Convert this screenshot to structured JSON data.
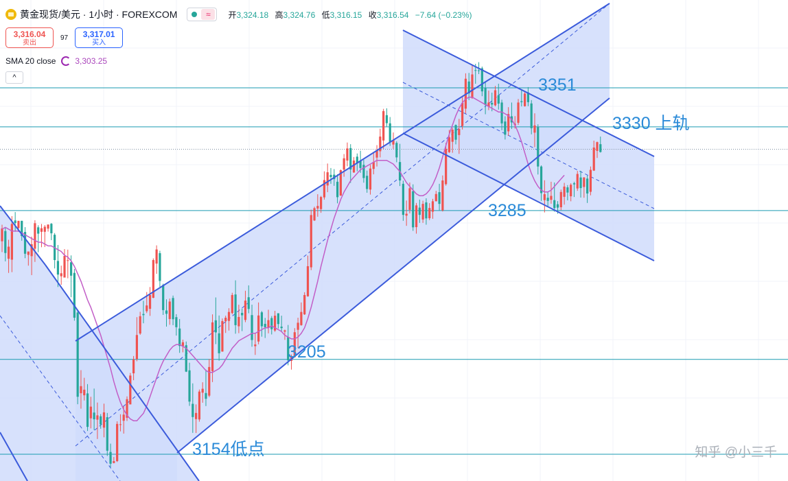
{
  "header": {
    "symbol": "黄金现货/美元 · 1小时 · FOREXCOM",
    "open_label": "开",
    "open": "3,324.18",
    "high_label": "高",
    "high": "3,324.76",
    "low_label": "低",
    "low": "3,316.15",
    "close_label": "收",
    "close": "3,316.54",
    "change": "−7.64 (−0.23%)",
    "sell_price": "3,316.04",
    "sell_label": "卖出",
    "spread": "97",
    "buy_price": "3,317.01",
    "buy_label": "买入",
    "sma_label": "SMA 20 close",
    "sma_value": "3,303.25",
    "live_icon": "dot-icon",
    "wave_icon": "≈",
    "collapse_icon": "^"
  },
  "annotations": {
    "a3351": "3351",
    "a3330": "3330 上轨",
    "a3285": "3285",
    "a3205": "3205",
    "a3154": "3154低点"
  },
  "watermark": "知乎 @小三千",
  "colors": {
    "up": "#ef5350",
    "down": "#26a69a",
    "sma": "#c25ec7",
    "channel": "#3b5bdb",
    "channel_fill": "#d0dcfb",
    "level": "#1a9ab0",
    "annotation": "#2a8ad8"
  },
  "chart_data": {
    "type": "candlestick",
    "price_range": [
      3147,
      3370
    ],
    "levels": [
      3351,
      3330,
      3318,
      3285,
      3205,
      3154
    ],
    "candles_ohlc": [
      [
        3268.5,
        3277.4,
        3262.7,
        3275.4
      ],
      [
        3274.0,
        3276.1,
        3257.7,
        3262.2
      ],
      [
        3259.1,
        3269.3,
        3251.5,
        3265.6
      ],
      [
        3258.6,
        3282.0,
        3251.9,
        3277.8
      ],
      [
        3279.7,
        3284.2,
        3273.6,
        3278.3
      ],
      [
        3275.6,
        3279.5,
        3273.6,
        3279.5
      ],
      [
        3279.5,
        3279.5,
        3268.8,
        3271.3
      ],
      [
        3273.5,
        3276.1,
        3259.4,
        3261.8
      ],
      [
        3261.2,
        3263.0,
        3255.4,
        3263.0
      ],
      [
        3260.5,
        3271.0,
        3250.3,
        3266.9
      ],
      [
        3264.5,
        3279.8,
        3257.4,
        3278.2
      ],
      [
        3276.0,
        3277.1,
        3262.6,
        3272.6
      ],
      [
        3273.6,
        3277.8,
        3265.3,
        3275.5
      ],
      [
        3273.6,
        3277.2,
        3265.4,
        3276.3
      ],
      [
        3275.3,
        3277.5,
        3273.7,
        3277.5
      ],
      [
        3277.9,
        3278.3,
        3269.1,
        3272.8
      ],
      [
        3272.0,
        3272.9,
        3253.9,
        3258.4
      ],
      [
        3257.9,
        3266.5,
        3243.9,
        3250.6
      ],
      [
        3249.7,
        3255.4,
        3245.1,
        3251.3
      ],
      [
        3249.0,
        3264.3,
        3249.0,
        3260.6
      ],
      [
        3258.3,
        3264.0,
        3248.6,
        3258.3
      ],
      [
        3257.2,
        3260.9,
        3238.4,
        3250.0
      ],
      [
        3251.5,
        3253.6,
        3225.8,
        3227.4
      ],
      [
        3230.2,
        3231.3,
        3180.9,
        3184.9
      ],
      [
        3186.8,
        3199.2,
        3178.5,
        3190.6
      ],
      [
        3185.7,
        3195.1,
        3182.9,
        3188.7
      ],
      [
        3186.7,
        3191.7,
        3166.5,
        3168.7
      ],
      [
        3173.3,
        3184.9,
        3167.9,
        3179.6
      ],
      [
        3176.4,
        3189.3,
        3167.0,
        3172.8
      ],
      [
        3172.6,
        3181.8,
        3162.2,
        3174.9
      ],
      [
        3174.4,
        3175.6,
        3167.7,
        3170.0
      ],
      [
        3168.3,
        3181.2,
        3163.1,
        3176.5
      ],
      [
        3173.9,
        3176.2,
        3153.1,
        3155.9
      ],
      [
        3155.2,
        3159.7,
        3147.0,
        3148.9
      ],
      [
        3149.3,
        3152.5,
        3149.1,
        3150.3
      ],
      [
        3150.3,
        3171.7,
        3149.8,
        3170.3
      ],
      [
        3170.0,
        3175.5,
        3166.3,
        3170.1
      ],
      [
        3172.0,
        3179.9,
        3165.1,
        3175.3
      ],
      [
        3173.6,
        3185.1,
        3171.9,
        3183.6
      ],
      [
        3180.8,
        3197.7,
        3180.8,
        3196.3
      ],
      [
        3197.5,
        3206.8,
        3193.8,
        3205.0
      ],
      [
        3205.2,
        3227.7,
        3204.0,
        3218.1
      ],
      [
        3218.9,
        3230.6,
        3218.2,
        3228.2
      ],
      [
        3229.4,
        3236.5,
        3224.4,
        3228.8
      ],
      [
        3230.9,
        3241.2,
        3229.9,
        3234.0
      ],
      [
        3232.2,
        3243.9,
        3228.4,
        3239.6
      ],
      [
        3238.1,
        3259.3,
        3237.9,
        3258.4
      ],
      [
        3256.5,
        3266.3,
        3251.0,
        3264.1
      ],
      [
        3262.1,
        3263.4,
        3244.0,
        3247.2
      ],
      [
        3245.0,
        3245.7,
        3228.9,
        3231.5
      ],
      [
        3231.3,
        3237.3,
        3222.6,
        3229.5
      ],
      [
        3226.7,
        3237.7,
        3223.6,
        3236.1
      ],
      [
        3238.0,
        3239.3,
        3223.4,
        3226.6
      ],
      [
        3227.7,
        3229.3,
        3217.8,
        3222.3
      ],
      [
        3221.6,
        3226.7,
        3208.5,
        3212.2
      ],
      [
        3212.2,
        3215.6,
        3208.8,
        3214.2
      ],
      [
        3212.6,
        3214.6,
        3198.2,
        3198.4
      ],
      [
        3199.1,
        3203.2,
        3180.0,
        3182.3
      ],
      [
        3181.1,
        3192.1,
        3165.5,
        3174.0
      ],
      [
        3172.9,
        3180.8,
        3165.4,
        3176.2
      ],
      [
        3172.7,
        3188.8,
        3171.5,
        3187.7
      ],
      [
        3187.1,
        3192.7,
        3181.7,
        3189.2
      ],
      [
        3186.9,
        3199.5,
        3179.9,
        3183.8
      ],
      [
        3185.5,
        3205.2,
        3184.7,
        3200.9
      ],
      [
        3198.7,
        3229.2,
        3192.8,
        3224.9
      ],
      [
        3226.0,
        3238.3,
        3213.2,
        3219.5
      ],
      [
        3219.0,
        3228.6,
        3204.3,
        3208.3
      ],
      [
        3209.2,
        3227.0,
        3209.1,
        3225.6
      ],
      [
        3225.5,
        3228.5,
        3219.2,
        3227.4
      ],
      [
        3225.7,
        3232.5,
        3220.5,
        3230.5
      ],
      [
        3229.9,
        3240.8,
        3229.2,
        3239.6
      ],
      [
        3239.9,
        3247.5,
        3218.8,
        3223.4
      ],
      [
        3222.8,
        3234.4,
        3219.1,
        3227.8
      ],
      [
        3230.0,
        3232.3,
        3220.2,
        3228.7
      ],
      [
        3226.2,
        3241.9,
        3225.0,
        3236.6
      ],
      [
        3238.4,
        3244.8,
        3229.8,
        3232.1
      ],
      [
        3228.8,
        3234.4,
        3211.8,
        3215.4
      ],
      [
        3212.1,
        3219.3,
        3207.4,
        3213.0
      ],
      [
        3214.6,
        3235.6,
        3213.1,
        3228.6
      ],
      [
        3230.3,
        3231.0,
        3217.2,
        3222.8
      ],
      [
        3224.1,
        3227.3,
        3216.5,
        3222.3
      ],
      [
        3222.0,
        3231.7,
        3219.0,
        3226.1
      ],
      [
        3227.2,
        3228.3,
        3218.4,
        3221.2
      ],
      [
        3220.5,
        3231.1,
        3219.8,
        3228.5
      ],
      [
        3229.8,
        3229.8,
        3221.6,
        3224.0
      ],
      [
        3222.6,
        3228.5,
        3219.6,
        3221.8
      ],
      [
        3219.9,
        3221.0,
        3215.5,
        3220.6
      ],
      [
        3216.9,
        3223.5,
        3201.8,
        3204.5
      ],
      [
        3204.2,
        3207.6,
        3199.5,
        3206.7
      ],
      [
        3206.2,
        3221.8,
        3206.0,
        3219.6
      ],
      [
        3220.9,
        3227.4,
        3211.1,
        3224.7
      ],
      [
        3223.4,
        3235.6,
        3223.1,
        3230.5
      ],
      [
        3229.2,
        3241.1,
        3228.9,
        3239.6
      ],
      [
        3238.9,
        3260.8,
        3238.7,
        3255.1
      ],
      [
        3254.5,
        3285.5,
        3253.0,
        3282.6
      ],
      [
        3279.7,
        3287.1,
        3279.4,
        3286.3
      ],
      [
        3286.1,
        3293.8,
        3281.7,
        3287.5
      ],
      [
        3285.8,
        3292.9,
        3283.8,
        3292.3
      ],
      [
        3292.1,
        3306.1,
        3290.9,
        3301.4
      ],
      [
        3298.5,
        3310.3,
        3294.9,
        3305.6
      ],
      [
        3304.2,
        3307.9,
        3299.4,
        3303.0
      ],
      [
        3304.3,
        3307.3,
        3298.3,
        3301.9
      ],
      [
        3300.5,
        3304.5,
        3288.9,
        3292.2
      ],
      [
        3293.1,
        3307.1,
        3292.9,
        3306.7
      ],
      [
        3307.0,
        3315.4,
        3303.2,
        3313.1
      ],
      [
        3311.9,
        3321.6,
        3308.8,
        3318.4
      ],
      [
        3318.6,
        3320.7,
        3299.9,
        3307.1
      ],
      [
        3305.5,
        3313.8,
        3305.3,
        3311.9
      ],
      [
        3314.0,
        3315.7,
        3306.1,
        3310.4
      ],
      [
        3311.6,
        3317.2,
        3305.3,
        3307.9
      ],
      [
        3309.6,
        3312.3,
        3300.0,
        3302.5
      ],
      [
        3303.7,
        3306.5,
        3294.6,
        3296.6
      ],
      [
        3296.3,
        3309.6,
        3293.6,
        3307.6
      ],
      [
        3307.4,
        3316.1,
        3304.5,
        3311.1
      ],
      [
        3313.5,
        3320.2,
        3308.7,
        3317.6
      ],
      [
        3316.9,
        3329.0,
        3313.6,
        3324.8
      ],
      [
        3322.7,
        3339.7,
        3318.2,
        3338.5
      ],
      [
        3336.3,
        3340.0,
        3330.2,
        3332.0
      ],
      [
        3331.9,
        3335.3,
        3319.8,
        3321.9
      ],
      [
        3320.5,
        3327.0,
        3318.2,
        3322.9
      ],
      [
        3321.4,
        3322.3,
        3311.0,
        3313.6
      ],
      [
        3311.1,
        3320.9,
        3298.2,
        3301.2
      ],
      [
        3299.4,
        3301.1,
        3279.5,
        3282.7
      ],
      [
        3282.3,
        3290.4,
        3276.8,
        3283.3
      ],
      [
        3285.4,
        3300.1,
        3283.5,
        3297.0
      ],
      [
        3295.4,
        3299.1,
        3274.1,
        3276.0
      ],
      [
        3276.1,
        3289.1,
        3272.6,
        3287.8
      ],
      [
        3286.6,
        3290.9,
        3278.4,
        3282.7
      ],
      [
        3280.2,
        3290.3,
        3278.4,
        3288.6
      ],
      [
        3289.4,
        3291.6,
        3277.4,
        3280.8
      ],
      [
        3280.9,
        3289.0,
        3279.9,
        3286.4
      ],
      [
        3284.4,
        3291.3,
        3280.6,
        3290.0
      ],
      [
        3290.0,
        3295.6,
        3290.0,
        3293.9
      ],
      [
        3294.9,
        3299.4,
        3284.9,
        3288.6
      ],
      [
        3285.1,
        3303.9,
        3284.5,
        3301.2
      ],
      [
        3299.2,
        3321.4,
        3298.4,
        3318.2
      ],
      [
        3316.4,
        3328.4,
        3316.0,
        3324.4
      ],
      [
        3322.0,
        3329.5,
        3316.1,
        3328.5
      ],
      [
        3331.0,
        3331.3,
        3320.6,
        3323.1
      ],
      [
        3325.6,
        3334.3,
        3315.5,
        3328.9
      ],
      [
        3330.5,
        3346.0,
        3328.6,
        3342.9
      ],
      [
        3339.8,
        3358.8,
        3337.2,
        3355.9
      ],
      [
        3354.4,
        3359.0,
        3344.4,
        3348.0
      ],
      [
        3345.5,
        3363.3,
        3345.1,
        3358.2
      ],
      [
        3360.5,
        3363.9,
        3353.2,
        3360.3
      ],
      [
        3360.4,
        3364.8,
        3358.4,
        3360.1
      ],
      [
        3361.5,
        3362.4,
        3346.5,
        3349.1
      ],
      [
        3350.8,
        3354.3,
        3336.8,
        3341.8
      ],
      [
        3340.9,
        3349.5,
        3339.0,
        3343.1
      ],
      [
        3342.9,
        3348.4,
        3338.4,
        3342.0
      ],
      [
        3341.6,
        3352.0,
        3341.0,
        3349.7
      ],
      [
        3347.0,
        3353.2,
        3339.3,
        3342.5
      ],
      [
        3343.1,
        3344.6,
        3328.2,
        3331.9
      ],
      [
        3332.9,
        3335.7,
        3323.2,
        3325.8
      ],
      [
        3327.6,
        3340.6,
        3325.2,
        3336.9
      ],
      [
        3335.7,
        3343.1,
        3328.9,
        3332.4
      ],
      [
        3330.9,
        3335.8,
        3329.1,
        3331.7
      ],
      [
        3332.2,
        3345.0,
        3331.1,
        3343.1
      ],
      [
        3343.8,
        3350.2,
        3341.0,
        3343.3
      ],
      [
        3341.1,
        3348.9,
        3340.9,
        3347.9
      ],
      [
        3348.5,
        3351.4,
        3341.1,
        3343.3
      ],
      [
        3342.6,
        3344.4,
        3326.0,
        3329.3
      ],
      [
        3326.9,
        3337.3,
        3319.1,
        3330.8
      ],
      [
        3329.9,
        3331.4,
        3304.4,
        3308.7
      ],
      [
        3308.7,
        3309.3,
        3290.2,
        3294.4
      ],
      [
        3290.6,
        3301.3,
        3284.0,
        3293.8
      ],
      [
        3291.9,
        3295.0,
        3287.1,
        3290.2
      ],
      [
        3290.8,
        3300.5,
        3288.7,
        3292.9
      ],
      [
        3290.6,
        3300.1,
        3284.4,
        3286.4
      ],
      [
        3288.4,
        3290.1,
        3283.3,
        3286.6
      ],
      [
        3286.8,
        3296.3,
        3285.2,
        3295.0
      ],
      [
        3292.4,
        3299.9,
        3288.2,
        3297.9
      ],
      [
        3297.5,
        3298.7,
        3290.5,
        3294.7
      ],
      [
        3292.7,
        3299.7,
        3290.0,
        3298.9
      ],
      [
        3299.7,
        3300.5,
        3292.3,
        3299.1
      ],
      [
        3296.9,
        3306.3,
        3295.6,
        3304.7
      ],
      [
        3302.8,
        3306.4,
        3292.0,
        3297.1
      ],
      [
        3297.7,
        3303.0,
        3291.9,
        3302.8
      ],
      [
        3302.2,
        3303.8,
        3289.1,
        3294.2
      ],
      [
        3295.1,
        3308.7,
        3293.2,
        3306.9
      ],
      [
        3306.5,
        3322.6,
        3306.3,
        3318.9
      ],
      [
        3317.1,
        3322.1,
        3313.3,
        3321.8
      ],
      [
        3320.7,
        3324.8,
        3316.2,
        3316.5
      ]
    ],
    "sma20": [
      3275,
      3276,
      3275,
      3274,
      3274,
      3274,
      3273,
      3272,
      3271,
      3270,
      3269,
      3268,
      3268,
      3267,
      3266,
      3266,
      3265,
      3264,
      3263,
      3261,
      3260,
      3258,
      3255,
      3251,
      3247,
      3242,
      3237,
      3233,
      3228,
      3223,
      3218,
      3212,
      3206,
      3200,
      3193,
      3187,
      3182,
      3178,
      3175,
      3173,
      3172,
      3172,
      3174,
      3176,
      3180,
      3185,
      3190,
      3195,
      3200,
      3204,
      3207,
      3210,
      3212,
      3213,
      3213,
      3212,
      3211,
      3209,
      3207,
      3205,
      3203,
      3201,
      3199,
      3198,
      3198,
      3199,
      3200,
      3202,
      3205,
      3208,
      3211,
      3213,
      3215,
      3216,
      3217,
      3218,
      3219,
      3219,
      3220,
      3221,
      3222,
      3222,
      3223,
      3222,
      3221,
      3220,
      3218,
      3217,
      3216,
      3216,
      3217,
      3219,
      3222,
      3227,
      3233,
      3240,
      3247,
      3255,
      3262,
      3269,
      3275,
      3281,
      3286,
      3291,
      3295,
      3298,
      3301,
      3303,
      3305,
      3307,
      3308,
      3309,
      3310,
      3311,
      3312,
      3312,
      3312,
      3312,
      3311,
      3310,
      3308,
      3306,
      3303,
      3300,
      3298,
      3296,
      3294,
      3293,
      3293,
      3294,
      3296,
      3299,
      3303,
      3308,
      3314,
      3320,
      3326,
      3331,
      3336,
      3340,
      3343,
      3345,
      3346,
      3346,
      3345,
      3344,
      3343,
      3342,
      3341,
      3340,
      3339,
      3338,
      3338,
      3337,
      3336,
      3334,
      3331,
      3327,
      3322,
      3316,
      3310,
      3305,
      3301,
      3298,
      3296,
      3295,
      3295,
      3296,
      3298,
      3300,
      3302,
      3304
    ],
    "channels": [
      {
        "name": "upper-bull-channel",
        "from_bar": 0,
        "to_bar": 150
      },
      {
        "name": "bear-channel-top",
        "from_bar": 124,
        "to_bar": 171
      },
      {
        "name": "early-bear-channel",
        "from_bar": 0,
        "to_bar": 46
      }
    ]
  }
}
